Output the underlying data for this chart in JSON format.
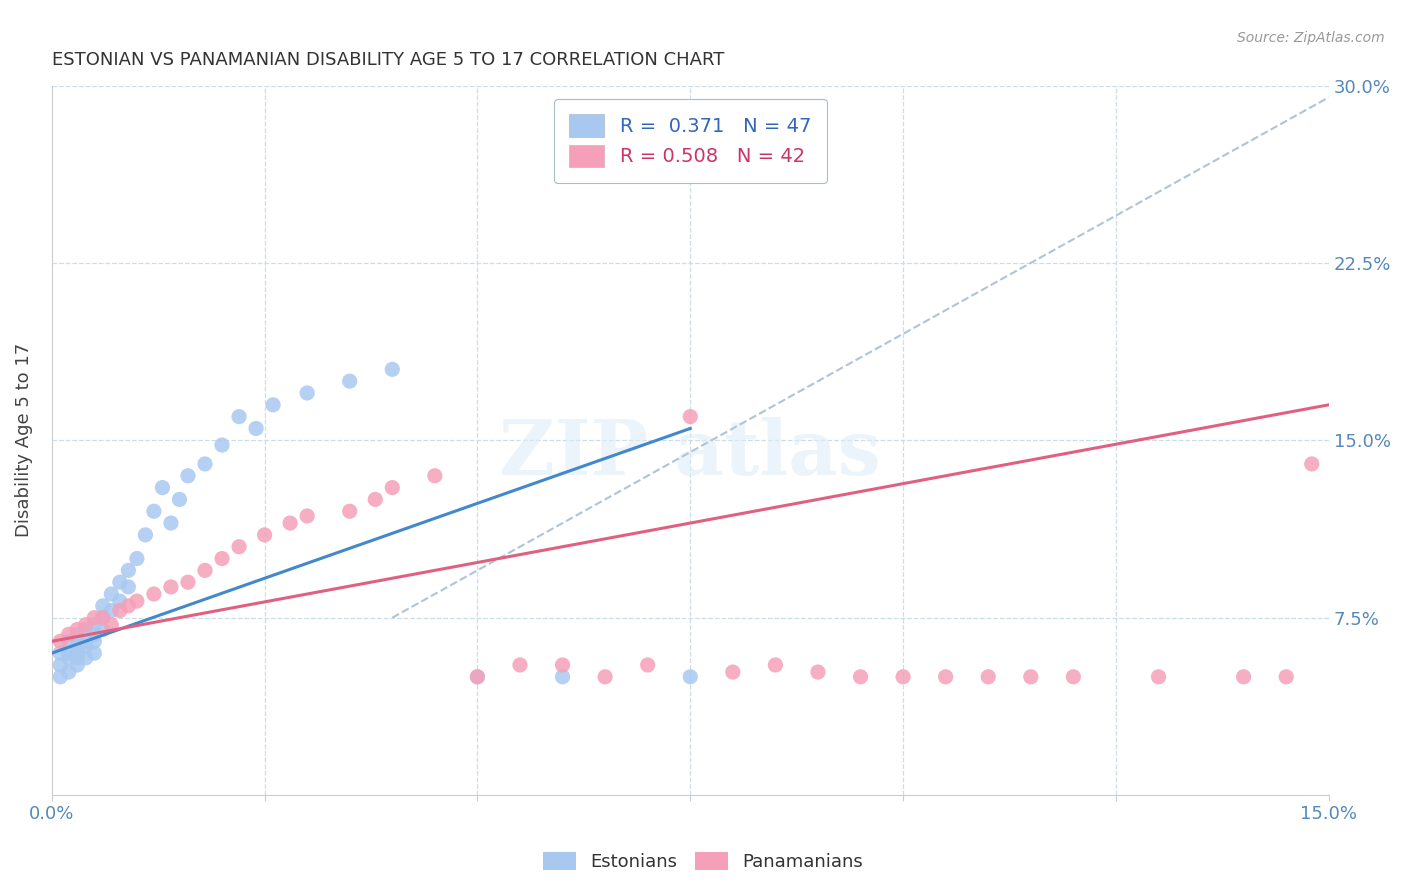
{
  "title": "ESTONIAN VS PANAMANIAN DISABILITY AGE 5 TO 17 CORRELATION CHART",
  "source": "Source: ZipAtlas.com",
  "ylabel": "Disability Age 5 to 17",
  "xlim": [
    0.0,
    0.15
  ],
  "ylim": [
    0.0,
    0.3
  ],
  "legend_r_estonian": "0.371",
  "legend_n_estonian": "47",
  "legend_r_panamanian": "0.508",
  "legend_n_panamanian": "42",
  "estonian_color": "#a8c8f0",
  "panamanian_color": "#f5a0b8",
  "trend_estonian_color": "#4488cc",
  "trend_panamanian_color": "#e06080",
  "trend_dashed_color": "#b0c4d8",
  "background_color": "#ffffff",
  "tick_color": "#5588bb",
  "grid_color": "#ccdde8",
  "estonian_x": [
    0.001,
    0.001,
    0.001,
    0.002,
    0.002,
    0.002,
    0.002,
    0.003,
    0.003,
    0.003,
    0.003,
    0.003,
    0.004,
    0.004,
    0.004,
    0.004,
    0.005,
    0.005,
    0.005,
    0.005,
    0.006,
    0.006,
    0.006,
    0.007,
    0.007,
    0.008,
    0.008,
    0.009,
    0.009,
    0.01,
    0.011,
    0.012,
    0.013,
    0.014,
    0.015,
    0.016,
    0.018,
    0.02,
    0.022,
    0.024,
    0.026,
    0.03,
    0.035,
    0.04,
    0.05,
    0.06,
    0.075
  ],
  "estonian_y": [
    0.06,
    0.055,
    0.05,
    0.065,
    0.06,
    0.058,
    0.052,
    0.068,
    0.063,
    0.06,
    0.058,
    0.055,
    0.07,
    0.065,
    0.063,
    0.058,
    0.072,
    0.068,
    0.065,
    0.06,
    0.08,
    0.075,
    0.07,
    0.085,
    0.078,
    0.09,
    0.082,
    0.095,
    0.088,
    0.1,
    0.11,
    0.12,
    0.13,
    0.115,
    0.125,
    0.135,
    0.14,
    0.148,
    0.16,
    0.155,
    0.165,
    0.17,
    0.175,
    0.18,
    0.05,
    0.05,
    0.05
  ],
  "panamanian_x": [
    0.001,
    0.002,
    0.003,
    0.004,
    0.005,
    0.006,
    0.007,
    0.008,
    0.009,
    0.01,
    0.012,
    0.014,
    0.016,
    0.018,
    0.02,
    0.022,
    0.025,
    0.028,
    0.03,
    0.035,
    0.038,
    0.04,
    0.045,
    0.05,
    0.055,
    0.06,
    0.065,
    0.07,
    0.075,
    0.08,
    0.085,
    0.09,
    0.095,
    0.1,
    0.105,
    0.11,
    0.115,
    0.12,
    0.13,
    0.14,
    0.145,
    0.148
  ],
  "panamanian_y": [
    0.065,
    0.068,
    0.07,
    0.072,
    0.075,
    0.075,
    0.072,
    0.078,
    0.08,
    0.082,
    0.085,
    0.088,
    0.09,
    0.095,
    0.1,
    0.105,
    0.11,
    0.115,
    0.118,
    0.12,
    0.125,
    0.13,
    0.135,
    0.05,
    0.055,
    0.055,
    0.05,
    0.055,
    0.16,
    0.052,
    0.055,
    0.052,
    0.05,
    0.05,
    0.05,
    0.05,
    0.05,
    0.05,
    0.05,
    0.05,
    0.05,
    0.14
  ],
  "trend_estonian_x0": 0.0,
  "trend_estonian_y0": 0.06,
  "trend_estonian_x1": 0.075,
  "trend_estonian_y1": 0.155,
  "trend_panamanian_x0": 0.0,
  "trend_panamanian_y0": 0.065,
  "trend_panamanian_x1": 0.15,
  "trend_panamanian_y1": 0.165,
  "trend_dash_x0": 0.04,
  "trend_dash_y0": 0.075,
  "trend_dash_x1": 0.15,
  "trend_dash_y1": 0.295
}
